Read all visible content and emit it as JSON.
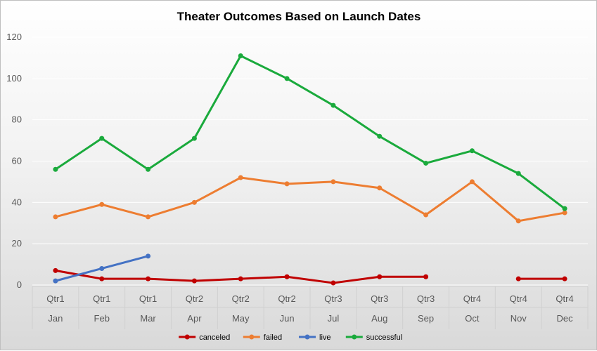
{
  "chart_data": {
    "type": "line",
    "title": "Theater Outcomes Based on Launch Dates",
    "xlabel": "",
    "ylabel": "",
    "ylim": [
      0,
      120
    ],
    "yticks": [
      0,
      20,
      40,
      60,
      80,
      100,
      120
    ],
    "grid": true,
    "legend_position": "bottom",
    "categories": [
      {
        "quarter": "Qtr1",
        "month": "Jan"
      },
      {
        "quarter": "Qtr1",
        "month": "Feb"
      },
      {
        "quarter": "Qtr1",
        "month": "Mar"
      },
      {
        "quarter": "Qtr2",
        "month": "Apr"
      },
      {
        "quarter": "Qtr2",
        "month": "May"
      },
      {
        "quarter": "Qtr2",
        "month": "Jun"
      },
      {
        "quarter": "Qtr3",
        "month": "Jul"
      },
      {
        "quarter": "Qtr3",
        "month": "Aug"
      },
      {
        "quarter": "Qtr3",
        "month": "Sep"
      },
      {
        "quarter": "Qtr4",
        "month": "Oct"
      },
      {
        "quarter": "Qtr4",
        "month": "Nov"
      },
      {
        "quarter": "Qtr4",
        "month": "Dec"
      }
    ],
    "series": [
      {
        "name": "canceled",
        "color": "#c00000",
        "values": [
          7,
          3,
          3,
          2,
          3,
          4,
          1,
          4,
          4,
          null,
          3,
          3
        ]
      },
      {
        "name": "failed",
        "color": "#ed7d31",
        "values": [
          33,
          39,
          33,
          40,
          52,
          49,
          50,
          47,
          34,
          50,
          31,
          35
        ]
      },
      {
        "name": "live",
        "color": "#4472c4",
        "values": [
          2,
          8,
          14,
          null,
          null,
          null,
          null,
          null,
          null,
          null,
          null,
          null
        ]
      },
      {
        "name": "successful",
        "color": "#1aaa3c",
        "values": [
          56,
          71,
          56,
          71,
          111,
          100,
          87,
          72,
          59,
          65,
          54,
          37
        ]
      }
    ]
  }
}
